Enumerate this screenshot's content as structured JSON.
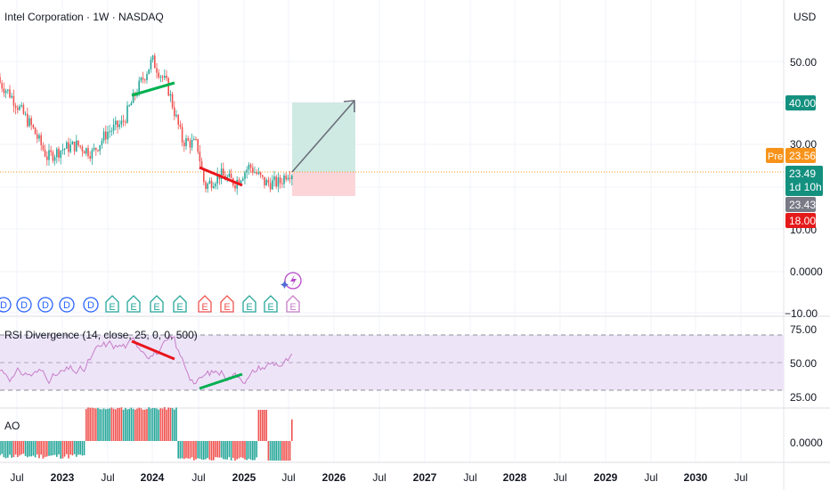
{
  "header": {
    "title": "Intel Corporation · 1W · NASDAQ",
    "currency": "USD"
  },
  "price_axis": {
    "ticks": [
      "50.00",
      "40.00",
      "30.00",
      "10.00",
      "0.0000",
      "−10.00"
    ],
    "badges": {
      "target": "40.00",
      "pre_label": "Pre",
      "pre_price": "23.56",
      "last_price": "23.49",
      "countdown": "1d 10h",
      "prev_close": "23.43",
      "stop": "18.00"
    }
  },
  "time_axis": {
    "labels": [
      "Jul",
      "2023",
      "Jul",
      "2024",
      "Jul",
      "2025",
      "Jul",
      "2026",
      "Jul",
      "2027",
      "Jul",
      "2028",
      "Jul",
      "2029",
      "Jul",
      "2030",
      "Jul"
    ]
  },
  "events": [
    {
      "type": "D"
    },
    {
      "type": "D"
    },
    {
      "type": "D"
    },
    {
      "type": "D"
    },
    {
      "type": "D"
    },
    {
      "type": "E"
    },
    {
      "type": "E"
    },
    {
      "type": "E"
    },
    {
      "type": "E"
    },
    {
      "type": "E"
    },
    {
      "type": "E"
    },
    {
      "type": "E"
    },
    {
      "type": "E"
    },
    {
      "type": "E"
    }
  ],
  "rsi_panel": {
    "title": "RSI Divergence (14, close, 25, 0, 0, 500)",
    "ticks": [
      "75.00",
      "50.00",
      "25.00"
    ]
  },
  "ao_panel": {
    "title": "AO",
    "ticks": [
      "0.0000"
    ]
  },
  "colors": {
    "up": "#26a69a",
    "down": "#ef5350",
    "bull_divergence": "#00b050",
    "bear_divergence": "#e8151b",
    "rsi_line": "#c77dc8",
    "rsi_band": "#ede4f8",
    "target_zone": "#cfeae3",
    "stop_zone": "#fbd5d8",
    "pre_badge": "#f7931a",
    "last_badge": "#14907f",
    "prev_badge": "#787b86",
    "stop_badge": "#e51b1b"
  },
  "chart_data": {
    "type": "candlestick",
    "price_x": [
      "2022-04",
      "2022-06",
      "2022-09",
      "2022-11",
      "2023-01",
      "2023-03",
      "2023-05",
      "2023-07",
      "2023-09",
      "2023-11",
      "2024-01",
      "2024-03",
      "2024-05",
      "2024-07",
      "2024-08",
      "2024-10",
      "2024-12",
      "2025-02",
      "2025-04",
      "2025-06",
      "2025-07"
    ],
    "price_y": [
      46,
      42,
      34,
      27,
      29,
      30,
      28,
      33,
      35,
      43,
      50,
      44,
      31,
      30,
      20,
      23,
      21,
      25,
      21,
      21,
      23.5
    ],
    "y_range": [
      -12,
      62
    ],
    "position": {
      "entry": 23.49,
      "target": 40.0,
      "stop": 18.0
    },
    "divergences": [
      {
        "panel": "price",
        "kind": "bearish",
        "from": [
          "2023-11",
          40
        ],
        "to": [
          "2024-02",
          45
        ]
      },
      {
        "panel": "price",
        "kind": "bearish",
        "from": [
          "2024-08",
          27
        ],
        "to": [
          "2024-12",
          20.5
        ]
      },
      {
        "panel": "rsi",
        "kind": "bearish",
        "from": [
          "2023-12",
          68
        ],
        "to": [
          "2024-03",
          54
        ]
      },
      {
        "panel": "rsi",
        "kind": "bullish",
        "from": [
          "2024-08",
          30
        ],
        "to": [
          "2024-12",
          38
        ]
      }
    ],
    "rsi_y_range": [
      18,
      80
    ],
    "rsi_levels": [
      70,
      50,
      30
    ],
    "ao_sign": [
      -1,
      -1,
      -1,
      -1,
      -1,
      -1,
      -1,
      -1,
      1,
      1,
      1,
      1,
      1,
      1,
      1,
      1,
      1,
      1,
      1,
      1,
      1,
      -1,
      -1,
      -1,
      -1,
      -1,
      -1,
      -1,
      -1,
      -1,
      -1,
      -1,
      1,
      1,
      1,
      1,
      1,
      1
    ]
  }
}
